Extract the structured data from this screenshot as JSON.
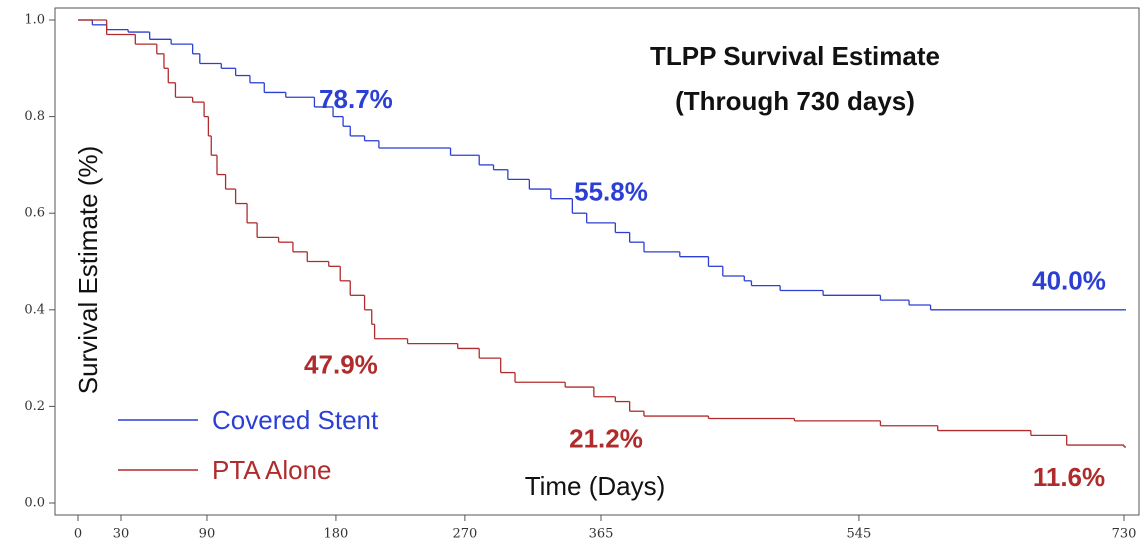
{
  "chart_data": {
    "type": "step",
    "title": "TLPP Survival Estimate",
    "subtitle": "(Through 730 days)",
    "x_label": "Time (Days)",
    "y_label": "Survival Estimate (%)",
    "xlim": [
      0,
      730
    ],
    "xticks": [
      0,
      30,
      90,
      180,
      270,
      365,
      545,
      730
    ],
    "ylim": [
      0,
      1
    ],
    "yticks": [
      {
        "value": 0,
        "label": "0.0"
      },
      0.2,
      0.4,
      0.6,
      0.8,
      {
        "value": 1,
        "label": "1.0"
      }
    ],
    "legend": "bottom-left",
    "series": [
      {
        "name": "Covered Stent",
        "color": "#2b3fd4",
        "x": [
          0,
          10,
          20,
          35,
          50,
          65,
          80,
          85,
          100,
          110,
          120,
          130,
          145,
          165,
          178,
          185,
          190,
          200,
          210,
          260,
          280,
          290,
          300,
          315,
          330,
          345,
          355,
          375,
          385,
          395,
          420,
          440,
          450,
          465,
          470,
          490,
          520,
          560,
          580,
          595,
          730
        ],
        "values": [
          1.0,
          0.99,
          0.98,
          0.975,
          0.96,
          0.95,
          0.93,
          0.91,
          0.9,
          0.885,
          0.87,
          0.85,
          0.84,
          0.82,
          0.8,
          0.78,
          0.76,
          0.75,
          0.735,
          0.72,
          0.7,
          0.69,
          0.67,
          0.65,
          0.63,
          0.6,
          0.58,
          0.56,
          0.54,
          0.52,
          0.51,
          0.49,
          0.47,
          0.46,
          0.45,
          0.44,
          0.43,
          0.42,
          0.41,
          0.4,
          0.4
        ],
        "annotations": [
          {
            "x": 180,
            "value": 0.787,
            "label": "78.7%"
          },
          {
            "x": 365,
            "value": 0.558,
            "label": "55.8%"
          },
          {
            "x": 730,
            "value": 0.4,
            "label": "40.0%"
          }
        ]
      },
      {
        "name": "PTA Alone",
        "color": "#b02c2c",
        "x": [
          0,
          20,
          40,
          55,
          60,
          63,
          68,
          80,
          88,
          91,
          93,
          97,
          103,
          110,
          118,
          125,
          140,
          150,
          160,
          175,
          183,
          190,
          200,
          205,
          207,
          230,
          265,
          280,
          295,
          305,
          340,
          360,
          375,
          385,
          395,
          440,
          500,
          560,
          600,
          665,
          690,
          730
        ],
        "values": [
          1.0,
          0.97,
          0.95,
          0.93,
          0.9,
          0.87,
          0.84,
          0.83,
          0.8,
          0.76,
          0.72,
          0.68,
          0.65,
          0.62,
          0.58,
          0.55,
          0.54,
          0.52,
          0.5,
          0.49,
          0.46,
          0.43,
          0.4,
          0.37,
          0.34,
          0.33,
          0.32,
          0.3,
          0.27,
          0.25,
          0.24,
          0.22,
          0.21,
          0.19,
          0.18,
          0.175,
          0.17,
          0.16,
          0.15,
          0.14,
          0.12,
          0.116
        ],
        "annotations": [
          {
            "x": 180,
            "value": 0.479,
            "label": "47.9%"
          },
          {
            "x": 365,
            "value": 0.212,
            "label": "21.2%"
          },
          {
            "x": 730,
            "value": 0.116,
            "label": "11.6%"
          }
        ]
      }
    ]
  }
}
